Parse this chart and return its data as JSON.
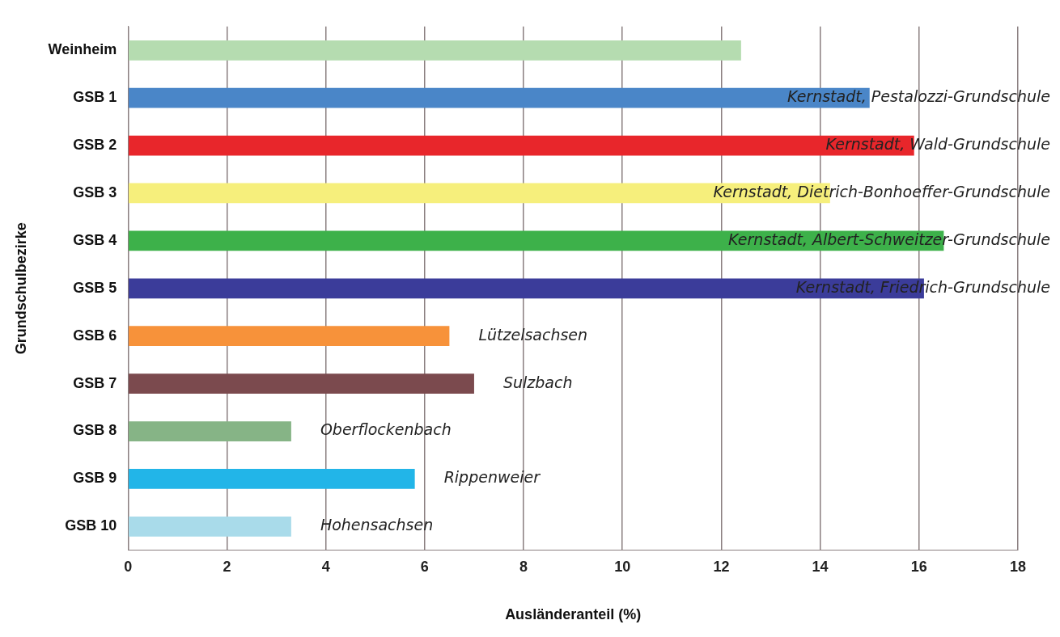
{
  "chart_data": {
    "type": "bar",
    "orientation": "horizontal",
    "xlabel": "Ausländeranteil (%)",
    "ylabel": "Grundschulbezirke",
    "categories": [
      "Weinheim",
      "GSB 1",
      "GSB 2",
      "GSB 3",
      "GSB 4",
      "GSB 5",
      "GSB 6",
      "GSB 7",
      "GSB 8",
      "GSB 9",
      "GSB 10"
    ],
    "values": [
      12.4,
      15.0,
      15.9,
      14.2,
      16.5,
      16.1,
      6.5,
      7.0,
      3.3,
      5.8,
      3.3
    ],
    "colors": [
      "#b5dcb0",
      "#4a86c8",
      "#e8262b",
      "#f6ef7c",
      "#3db14a",
      "#3b3c9a",
      "#f7923a",
      "#7b4a4e",
      "#86b486",
      "#22b5e8",
      "#a9dbea"
    ],
    "xlim": [
      0,
      18
    ],
    "xticks": [
      0,
      2,
      4,
      6,
      8,
      10,
      12,
      14,
      16,
      18
    ],
    "grid": "x",
    "annotations": [
      {
        "text": "Kernstadt, Pestalozzi-Grundschule",
        "x": 15.0,
        "y": "GSB 1"
      },
      {
        "text": "Kernstadt, Wald-Grundschule",
        "x": 15.9,
        "y": "GSB 2"
      },
      {
        "text": "Kernstadt, Dietrich-Bonhoeffer-Grundschule",
        "x": 14.2,
        "y": "GSB 3"
      },
      {
        "text": "Kernstadt, Albert-Schweitzer-Grundschule",
        "x": 16.5,
        "y": "GSB 4"
      },
      {
        "text": "Kernstadt, Friedrich-Grundschule",
        "x": 16.1,
        "y": "GSB 5"
      },
      {
        "text": "Lützelsachsen",
        "x": 6.5,
        "y": "GSB 6"
      },
      {
        "text": "Sulzbach",
        "x": 7.0,
        "y": "GSB 7"
      },
      {
        "text": "Oberflockenbach",
        "x": 3.3,
        "y": "GSB 8"
      },
      {
        "text": "Rippenweier",
        "x": 5.8,
        "y": "GSB 9"
      },
      {
        "text": "Hohensachsen",
        "x": 3.3,
        "y": "GSB 10"
      }
    ]
  }
}
